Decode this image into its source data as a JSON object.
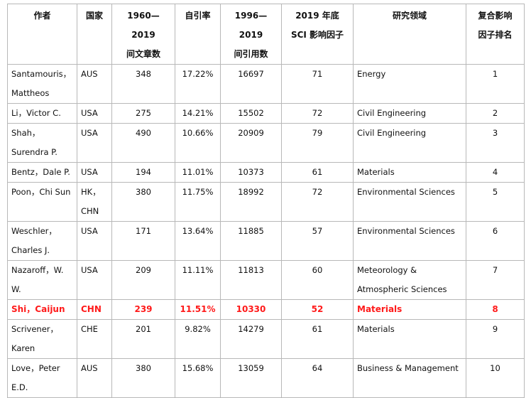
{
  "table": {
    "header": [
      [
        "作者"
      ],
      [
        "国家"
      ],
      [
        "1960—2019",
        "间文章数"
      ],
      [
        "自引率"
      ],
      [
        "1996—2019",
        "间引用数"
      ],
      [
        "2019 年底",
        "SCI 影响因子"
      ],
      [
        "研究领域"
      ],
      [
        "复合影响",
        "因子排名"
      ]
    ],
    "rows": [
      [
        "Santamouris，Mattheos",
        "AUS",
        348,
        "17.22%",
        16697,
        71,
        "Energy",
        1
      ],
      [
        "Li，Victor C.",
        "USA",
        275,
        "14.21%",
        15502,
        72,
        "Civil Engineering",
        2
      ],
      [
        "Shah，Surendra P.",
        "USA",
        490,
        "10.66%",
        20909,
        79,
        "Civil Engineering",
        3
      ],
      [
        "Bentz，Dale P.",
        "USA",
        194,
        "11.01%",
        10373,
        61,
        "Materials",
        4
      ],
      [
        "Poon，Chi Sun",
        "HK，CHN",
        380,
        "11.75%",
        18992,
        72,
        "Environmental Sciences",
        5
      ],
      [
        "Weschler，Charles J.",
        "USA",
        171,
        "13.64%",
        11885,
        57,
        "Environmental Sciences",
        6
      ],
      [
        "Nazaroff，W. W.",
        "USA",
        209,
        "11.11%",
        11813,
        60,
        "Meteorology & Atmospheric Sciences",
        7
      ],
      [
        "Shi，Caijun",
        "CHN",
        239,
        "11.51%",
        10330,
        52,
        "Materials",
        8
      ],
      [
        "Scrivener，Karen",
        "CHE",
        201,
        "9.82%",
        14279,
        61,
        "Materials",
        9
      ],
      [
        "Love，Peter E.D.",
        "AUS",
        380,
        "15.68%",
        13059,
        64,
        "Business & Management",
        10
      ]
    ],
    "highlight": {
      "row": 7,
      "color": "#ff1a1a"
    }
  }
}
